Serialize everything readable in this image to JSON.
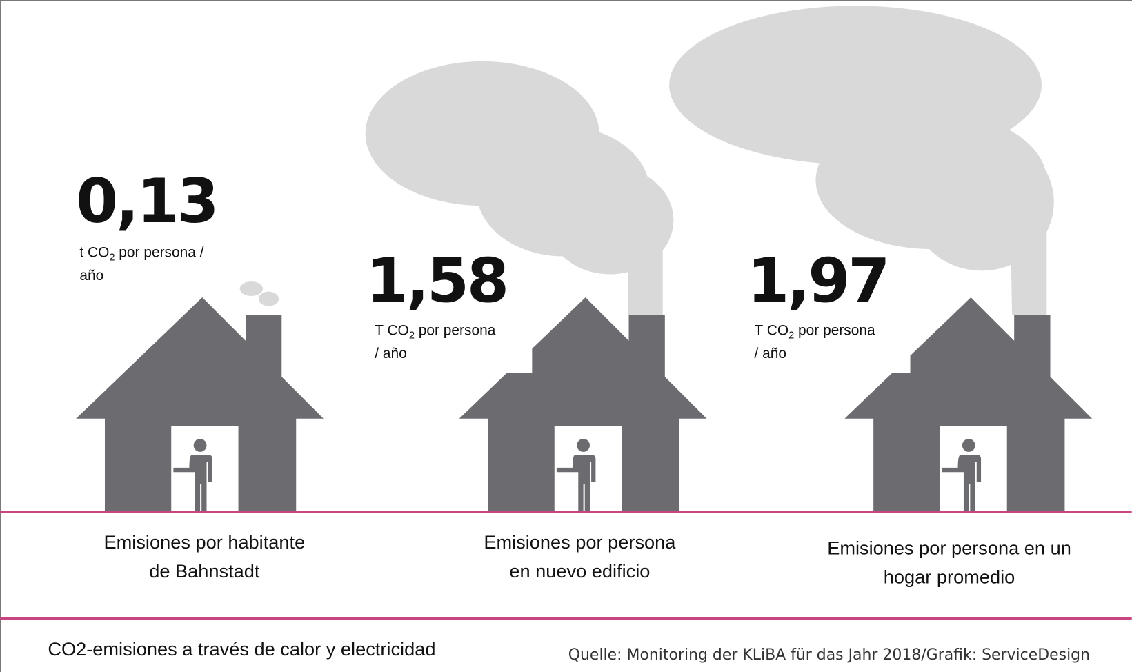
{
  "items": [
    {
      "value": "0,13",
      "unit": [
        "t CO",
        "2",
        " por persona /",
        "año"
      ],
      "label": [
        "Emisiones por habitante",
        "de Bahnstadt"
      ]
    },
    {
      "value": "1,58",
      "unit": [
        "T CO",
        "2",
        " por persona",
        "/ año"
      ],
      "label": [
        "Emisiones por persona",
        "en nuevo edificio"
      ]
    },
    {
      "value": "1,97",
      "unit": [
        "T CO",
        "2",
        " por persona",
        "/ año"
      ],
      "label": [
        "Emisiones por persona en un",
        "hogar promedio"
      ]
    }
  ],
  "footer": {
    "title": "CO2-emisiones a través de calor y electricidad",
    "source": "Quelle: Monitoring der KLiBA für das Jahr 2018/Grafik: ServiceDesign"
  }
}
